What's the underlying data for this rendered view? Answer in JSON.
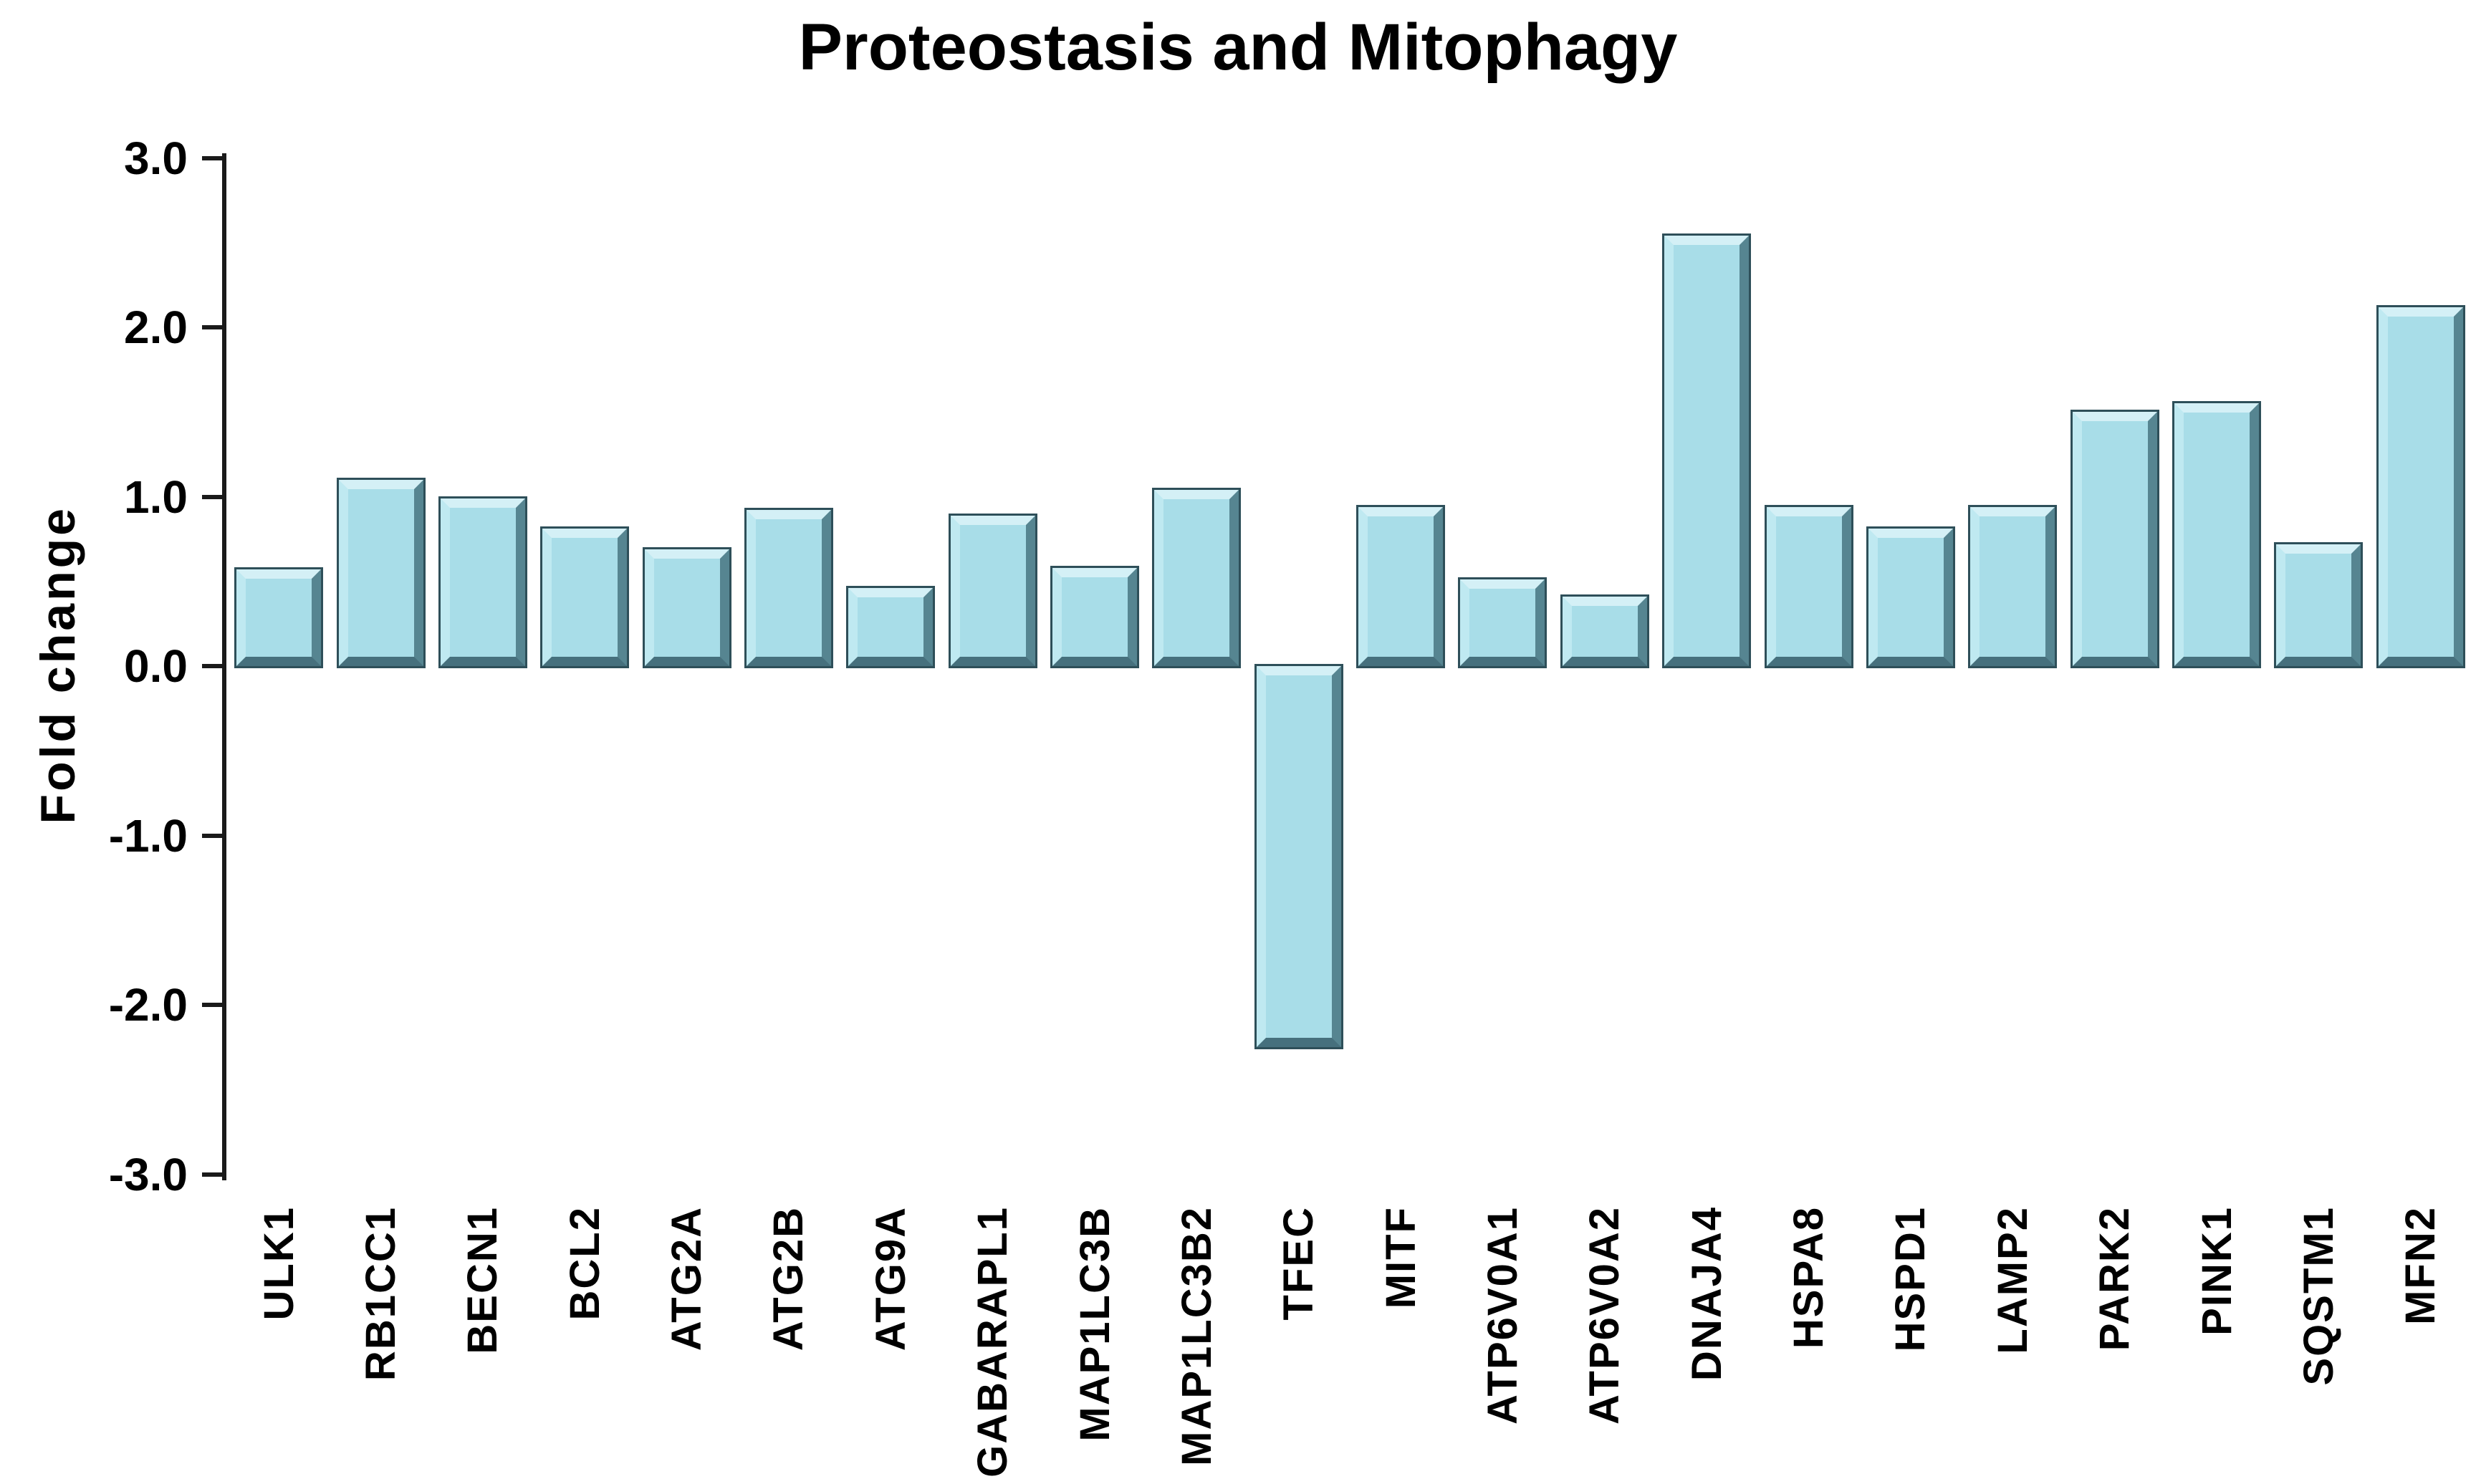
{
  "title": "Proteostasis and Mitophagy",
  "y_axis": {
    "label": "Fold change",
    "tick_labels": [
      "3.0",
      "2.0",
      "1.0",
      "0.0",
      "-1.0",
      "-2.0",
      "-3.0"
    ],
    "tick_values": [
      3.0,
      2.0,
      1.0,
      0.0,
      -1.0,
      -2.0,
      -3.0
    ]
  },
  "chart_data": {
    "type": "bar",
    "title": "Proteostasis and Mitophagy",
    "xlabel": "",
    "ylabel": "Fold change",
    "ylim": [
      -3.0,
      3.0
    ],
    "ytick_step": 1.0,
    "grid": false,
    "legend": false,
    "x_label_rotation": "90deg-ccw-reads-bottom-to-top",
    "bar_style": "3d-bevel",
    "bar_face_color": "#a8dde8",
    "bar_bevel_light_color": "#d4f0f6",
    "bar_bevel_dark_color": "#46707d",
    "bar_outline_color": "#2e4f59",
    "axis_color": "#1a1a1a",
    "background_color": "#ffffff",
    "categories": [
      "ULK1",
      "RB1CC1",
      "BECN1",
      "BCL2",
      "ATG2A",
      "ATG2B",
      "ATG9A",
      "GABARAPL1",
      "MAP1LC3B",
      "MAP1LC3B2",
      "TFEC",
      "MITF",
      "ATP6V0A1",
      "ATP6V0A2",
      "DNAJA4",
      "HSPA8",
      "HSPD1",
      "LAMP2",
      "PARK2",
      "PINK1",
      "SQSTM1",
      "MFN2"
    ],
    "values": [
      0.57,
      1.1,
      0.99,
      0.81,
      0.69,
      0.92,
      0.46,
      0.89,
      0.58,
      1.04,
      -2.25,
      0.94,
      0.51,
      0.41,
      2.54,
      0.94,
      0.81,
      0.94,
      1.5,
      1.55,
      0.72,
      2.12
    ]
  }
}
